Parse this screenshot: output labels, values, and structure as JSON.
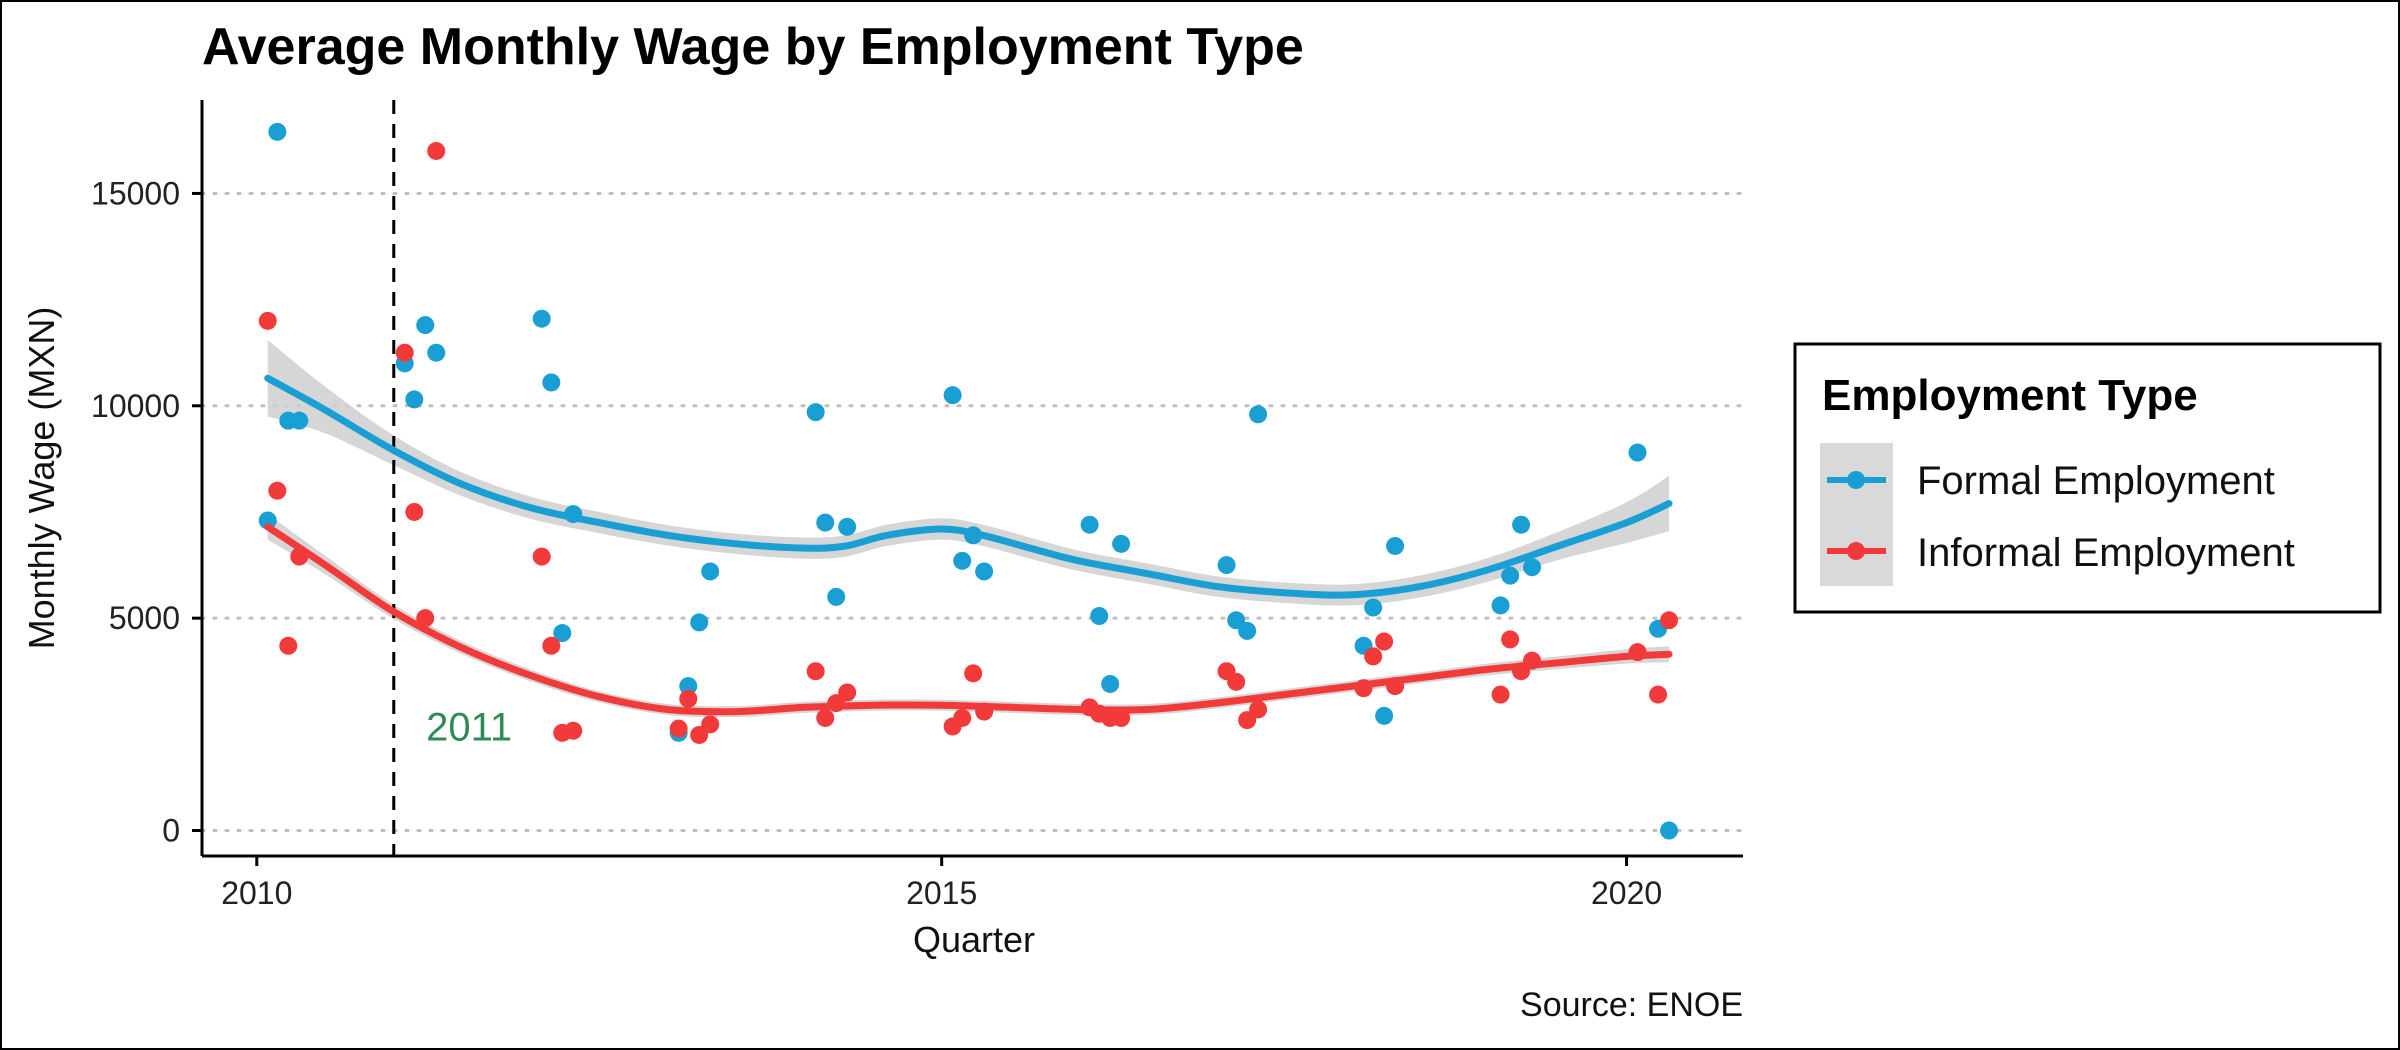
{
  "colors": {
    "formal": "#1a9fd4",
    "informal": "#f23a3a",
    "annotation": "#2e8b57",
    "ribbon": "#cfcfcf"
  },
  "chart_data": {
    "type": "scatter",
    "title": "Average Monthly Wage by Employment Type",
    "xlabel": "Quarter",
    "ylabel": "Monthly Wage (MXN)",
    "caption": "Source: ENOE",
    "xlim": [
      2009.6,
      2020.85
    ],
    "ylim": [
      -600,
      17200
    ],
    "x_ticks": [
      2010,
      2015,
      2020
    ],
    "y_ticks": [
      0,
      5000,
      10000,
      15000
    ],
    "grid": "horizontal-dotted",
    "vline": {
      "x": 2011.0,
      "style": "dashed"
    },
    "annotation": {
      "text": "2011",
      "x": 2011.55,
      "y": 2450
    },
    "legend": {
      "title": "Employment Type",
      "position": "right",
      "entries": [
        "Formal Employment",
        "Informal Employment"
      ]
    },
    "series": [
      {
        "name": "Formal Employment",
        "color_key": "formal",
        "points": [
          [
            2010.08,
            7300
          ],
          [
            2010.15,
            16450
          ],
          [
            2010.23,
            9650
          ],
          [
            2010.31,
            9650
          ],
          [
            2011.08,
            11000
          ],
          [
            2011.15,
            10150
          ],
          [
            2011.23,
            11900
          ],
          [
            2011.31,
            11250
          ],
          [
            2012.08,
            12050
          ],
          [
            2012.15,
            10550
          ],
          [
            2012.23,
            4650
          ],
          [
            2012.31,
            7450
          ],
          [
            2013.08,
            2300
          ],
          [
            2013.15,
            3400
          ],
          [
            2013.23,
            4900
          ],
          [
            2013.31,
            6100
          ],
          [
            2014.08,
            9850
          ],
          [
            2014.15,
            7250
          ],
          [
            2014.23,
            5500
          ],
          [
            2014.31,
            7150
          ],
          [
            2015.08,
            10250
          ],
          [
            2015.15,
            6350
          ],
          [
            2015.23,
            6950
          ],
          [
            2015.31,
            6100
          ],
          [
            2016.08,
            7200
          ],
          [
            2016.15,
            5050
          ],
          [
            2016.23,
            3450
          ],
          [
            2016.31,
            6750
          ],
          [
            2017.08,
            6250
          ],
          [
            2017.15,
            4950
          ],
          [
            2017.23,
            4700
          ],
          [
            2017.31,
            9800
          ],
          [
            2018.08,
            4350
          ],
          [
            2018.15,
            5250
          ],
          [
            2018.23,
            2700
          ],
          [
            2018.31,
            6700
          ],
          [
            2019.08,
            5300
          ],
          [
            2019.15,
            6000
          ],
          [
            2019.23,
            7200
          ],
          [
            2019.31,
            6200
          ],
          [
            2020.08,
            8900
          ],
          [
            2020.23,
            4750
          ],
          [
            2020.31,
            0
          ]
        ],
        "smooth": [
          [
            2010.08,
            10650
          ],
          [
            2010.5,
            9900
          ],
          [
            2011.0,
            8950
          ],
          [
            2011.5,
            8150
          ],
          [
            2012.0,
            7600
          ],
          [
            2012.5,
            7250
          ],
          [
            2013.0,
            6950
          ],
          [
            2013.5,
            6750
          ],
          [
            2014.0,
            6650
          ],
          [
            2014.3,
            6700
          ],
          [
            2014.6,
            6950
          ],
          [
            2015.0,
            7100
          ],
          [
            2015.3,
            6950
          ],
          [
            2015.7,
            6600
          ],
          [
            2016.0,
            6350
          ],
          [
            2016.5,
            6050
          ],
          [
            2017.0,
            5750
          ],
          [
            2017.5,
            5600
          ],
          [
            2018.0,
            5550
          ],
          [
            2018.5,
            5750
          ],
          [
            2019.0,
            6150
          ],
          [
            2019.5,
            6700
          ],
          [
            2020.0,
            7250
          ],
          [
            2020.31,
            7700
          ]
        ],
        "band": [
          [
            2010.08,
            900
          ],
          [
            2010.5,
            550
          ],
          [
            2011.0,
            350
          ],
          [
            2011.5,
            280
          ],
          [
            2012.0,
            260
          ],
          [
            2012.5,
            250
          ],
          [
            2013.0,
            240
          ],
          [
            2013.5,
            240
          ],
          [
            2014.0,
            250
          ],
          [
            2014.5,
            250
          ],
          [
            2015.0,
            250
          ],
          [
            2015.5,
            250
          ],
          [
            2016.0,
            240
          ],
          [
            2016.5,
            240
          ],
          [
            2017.0,
            240
          ],
          [
            2017.5,
            240
          ],
          [
            2018.0,
            250
          ],
          [
            2018.5,
            260
          ],
          [
            2019.0,
            280
          ],
          [
            2019.5,
            330
          ],
          [
            2020.0,
            480
          ],
          [
            2020.31,
            650
          ]
        ]
      },
      {
        "name": "Informal Employment",
        "color_key": "informal",
        "points": [
          [
            2010.08,
            12000
          ],
          [
            2010.15,
            8000
          ],
          [
            2010.23,
            4350
          ],
          [
            2010.31,
            6450
          ],
          [
            2011.08,
            11250
          ],
          [
            2011.15,
            7500
          ],
          [
            2011.23,
            5000
          ],
          [
            2011.31,
            16000
          ],
          [
            2012.08,
            6450
          ],
          [
            2012.15,
            4350
          ],
          [
            2012.23,
            2300
          ],
          [
            2012.31,
            2350
          ],
          [
            2013.08,
            2400
          ],
          [
            2013.15,
            3100
          ],
          [
            2013.23,
            2250
          ],
          [
            2013.31,
            2500
          ],
          [
            2014.08,
            3750
          ],
          [
            2014.15,
            2650
          ],
          [
            2014.23,
            3000
          ],
          [
            2014.31,
            3250
          ],
          [
            2015.08,
            2450
          ],
          [
            2015.15,
            2650
          ],
          [
            2015.23,
            3700
          ],
          [
            2015.31,
            2800
          ],
          [
            2016.08,
            2900
          ],
          [
            2016.15,
            2750
          ],
          [
            2016.23,
            2650
          ],
          [
            2016.31,
            2650
          ],
          [
            2017.08,
            3750
          ],
          [
            2017.15,
            3500
          ],
          [
            2017.23,
            2600
          ],
          [
            2017.31,
            2850
          ],
          [
            2018.08,
            3350
          ],
          [
            2018.15,
            4100
          ],
          [
            2018.23,
            4450
          ],
          [
            2018.31,
            3400
          ],
          [
            2019.08,
            3200
          ],
          [
            2019.15,
            4500
          ],
          [
            2019.23,
            3750
          ],
          [
            2019.31,
            4000
          ],
          [
            2020.08,
            4200
          ],
          [
            2020.23,
            3200
          ],
          [
            2020.31,
            4950
          ]
        ],
        "smooth": [
          [
            2010.08,
            7150
          ],
          [
            2010.5,
            6250
          ],
          [
            2011.0,
            5150
          ],
          [
            2011.5,
            4300
          ],
          [
            2012.0,
            3650
          ],
          [
            2012.5,
            3150
          ],
          [
            2013.0,
            2850
          ],
          [
            2013.5,
            2800
          ],
          [
            2014.0,
            2900
          ],
          [
            2014.5,
            2950
          ],
          [
            2015.0,
            2950
          ],
          [
            2015.5,
            2900
          ],
          [
            2016.0,
            2850
          ],
          [
            2016.5,
            2850
          ],
          [
            2017.0,
            3000
          ],
          [
            2017.5,
            3200
          ],
          [
            2018.0,
            3400
          ],
          [
            2018.5,
            3600
          ],
          [
            2019.0,
            3800
          ],
          [
            2019.5,
            3950
          ],
          [
            2020.0,
            4100
          ],
          [
            2020.31,
            4150
          ]
        ],
        "band": [
          [
            2010.08,
            300
          ],
          [
            2010.5,
            220
          ],
          [
            2011.0,
            170
          ],
          [
            2011.5,
            150
          ],
          [
            2012.0,
            140
          ],
          [
            2012.5,
            130
          ],
          [
            2013.0,
            130
          ],
          [
            2013.5,
            130
          ],
          [
            2014.0,
            130
          ],
          [
            2014.5,
            130
          ],
          [
            2015.0,
            130
          ],
          [
            2015.5,
            130
          ],
          [
            2016.0,
            130
          ],
          [
            2016.5,
            130
          ],
          [
            2017.0,
            130
          ],
          [
            2017.5,
            130
          ],
          [
            2018.0,
            130
          ],
          [
            2018.5,
            130
          ],
          [
            2019.0,
            140
          ],
          [
            2019.5,
            150
          ],
          [
            2020.0,
            170
          ],
          [
            2020.31,
            190
          ]
        ]
      }
    ]
  }
}
